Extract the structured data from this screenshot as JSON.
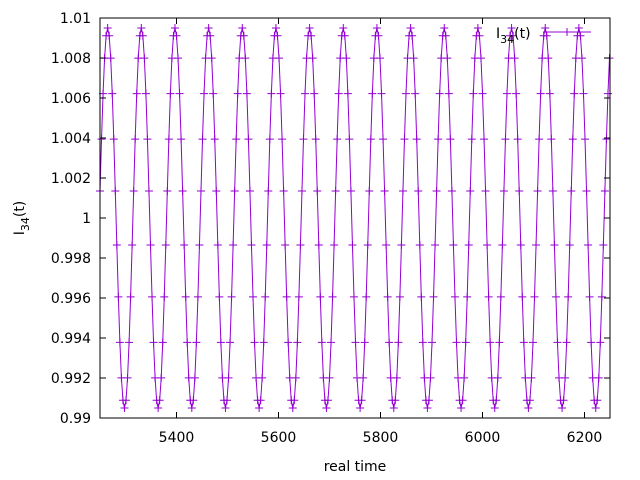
{
  "chart_data": {
    "type": "line",
    "xlabel": "real time",
    "ylabel": "I",
    "ylabel_sub": "34",
    "ylabel_tail": "(t)",
    "legend": {
      "position": "top-right",
      "label": "I",
      "label_sub": "34",
      "label_tail": "(t)"
    },
    "xlim": [
      5250,
      6250
    ],
    "ylim": [
      0.99,
      1.01
    ],
    "x_ticks": [
      5400,
      5600,
      5800,
      6000,
      6200
    ],
    "x_tick_labels": [
      "5400",
      "5600",
      "5800",
      "6000",
      "6200"
    ],
    "y_ticks": [
      0.99,
      0.992,
      0.994,
      0.996,
      0.998,
      1.0,
      1.002,
      1.004,
      1.006,
      1.008,
      1.01
    ],
    "y_tick_labels": [
      "0.99",
      "0.992",
      "0.994",
      "0.996",
      "0.998",
      "1",
      "1.002",
      "1.004",
      "1.006",
      "1.008",
      "1.01"
    ],
    "grid": false,
    "series": [
      {
        "name": "I34(t)",
        "color": "#9400d3",
        "marker": "plus",
        "oscillation": {
          "center": 1.0,
          "amplitude": 0.0095,
          "period": 66.0,
          "phase_peak_x": 5265.0,
          "sample_step": 3.0,
          "x_start": 5250,
          "x_end": 6250
        }
      }
    ]
  }
}
